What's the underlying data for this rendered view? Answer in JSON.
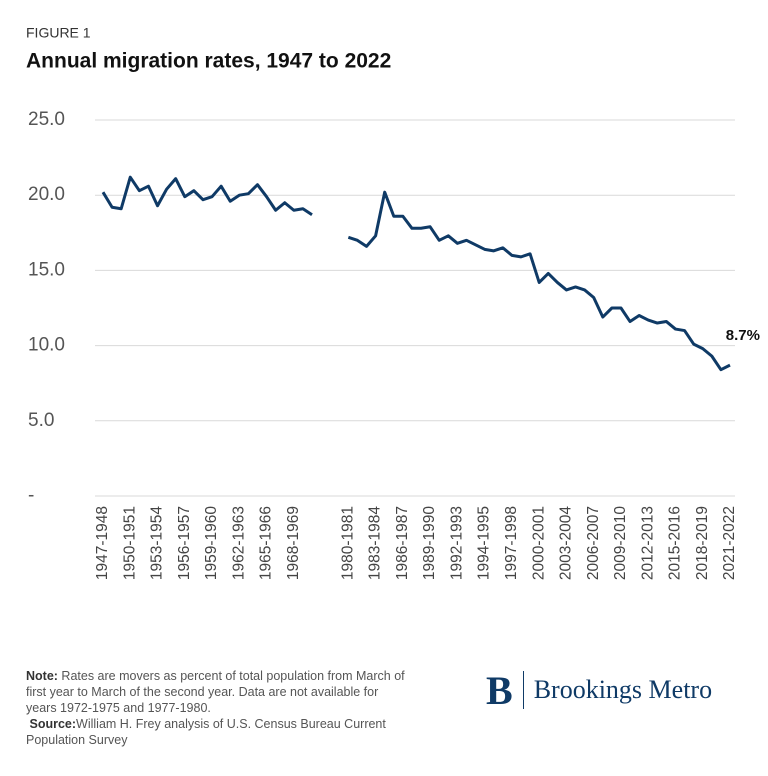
{
  "chart_data": {
    "type": "line",
    "figure_label": "FIGURE 1",
    "title": "Annual migration rates, 1947 to 2022",
    "categories": [
      "1947-1948",
      null,
      null,
      "1950-1951",
      null,
      null,
      "1953-1954",
      null,
      null,
      "1956-1957",
      null,
      null,
      "1959-1960",
      null,
      null,
      "1962-1963",
      null,
      null,
      "1965-1966",
      null,
      null,
      "1968-1969",
      null,
      null,
      null,
      null,
      null,
      "1980-1981",
      null,
      null,
      "1983-1984",
      null,
      null,
      "1986-1987",
      null,
      null,
      "1989-1990",
      null,
      null,
      "1992-1993",
      null,
      null,
      "1994-1995",
      null,
      null,
      "1997-1998",
      null,
      null,
      "2000-2001",
      null,
      null,
      "2003-2004",
      null,
      null,
      "2006-2007",
      null,
      null,
      "2009-2010",
      null,
      null,
      "2012-2013",
      null,
      null,
      "2015-2016",
      null,
      null,
      "2018-2019",
      null,
      null,
      "2021-2022"
    ],
    "series": [
      {
        "name": "Migration rate",
        "color": "#0f3a66",
        "values": [
          20.2,
          19.2,
          19.1,
          21.2,
          20.3,
          20.6,
          19.3,
          20.4,
          21.1,
          19.9,
          20.3,
          19.7,
          19.9,
          20.6,
          19.6,
          20.0,
          20.1,
          20.7,
          19.9,
          19.0,
          19.5,
          19.0,
          19.1,
          18.7,
          null,
          null,
          null,
          17.2,
          17.0,
          16.6,
          17.3,
          20.2,
          18.6,
          18.6,
          17.8,
          17.8,
          17.9,
          17.0,
          17.3,
          16.8,
          17.0,
          16.7,
          16.4,
          16.3,
          16.5,
          16.0,
          15.9,
          16.1,
          14.2,
          14.8,
          14.2,
          13.7,
          13.9,
          13.7,
          13.2,
          11.9,
          12.5,
          12.5,
          11.6,
          12.0,
          11.7,
          11.5,
          11.6,
          11.1,
          11.0,
          10.1,
          9.8,
          9.3,
          8.4,
          8.7
        ],
        "value_labels": [
          null,
          null,
          null,
          null,
          null,
          null,
          null,
          null,
          null,
          null,
          null,
          null,
          null,
          null,
          null,
          null,
          null,
          null,
          null,
          null,
          null,
          null,
          null,
          null,
          null,
          null,
          null,
          null,
          null,
          null,
          null,
          null,
          null,
          null,
          null,
          null,
          null,
          null,
          null,
          null,
          null,
          null,
          null,
          null,
          null,
          null,
          null,
          null,
          null,
          null,
          null,
          null,
          null,
          null,
          null,
          null,
          null,
          null,
          null,
          null,
          null,
          null,
          null,
          null,
          null,
          null,
          null,
          null,
          null,
          "8.7%"
        ]
      }
    ],
    "ylim": [
      0,
      25
    ],
    "yticks": [
      {
        "value": 0,
        "label": "-"
      },
      {
        "value": 5,
        "label": "5.0"
      },
      {
        "value": 10,
        "label": "10.0"
      },
      {
        "value": 15,
        "label": "15.0"
      },
      {
        "value": 20,
        "label": "20.0"
      },
      {
        "value": 25,
        "label": "25.0"
      }
    ],
    "grid": true
  },
  "footer": {
    "note_label": "Note:",
    "note_text": " Rates are movers as percent of total population from March of first year to March of the second year. Data are not available for years 1972-1975 and 1977-1980.",
    "source_label": "Source:",
    "source_text": "William H. Frey analysis of U.S. Census Bureau Current Population Survey",
    "logo_letter": "B",
    "brand": "Brookings Metro"
  }
}
